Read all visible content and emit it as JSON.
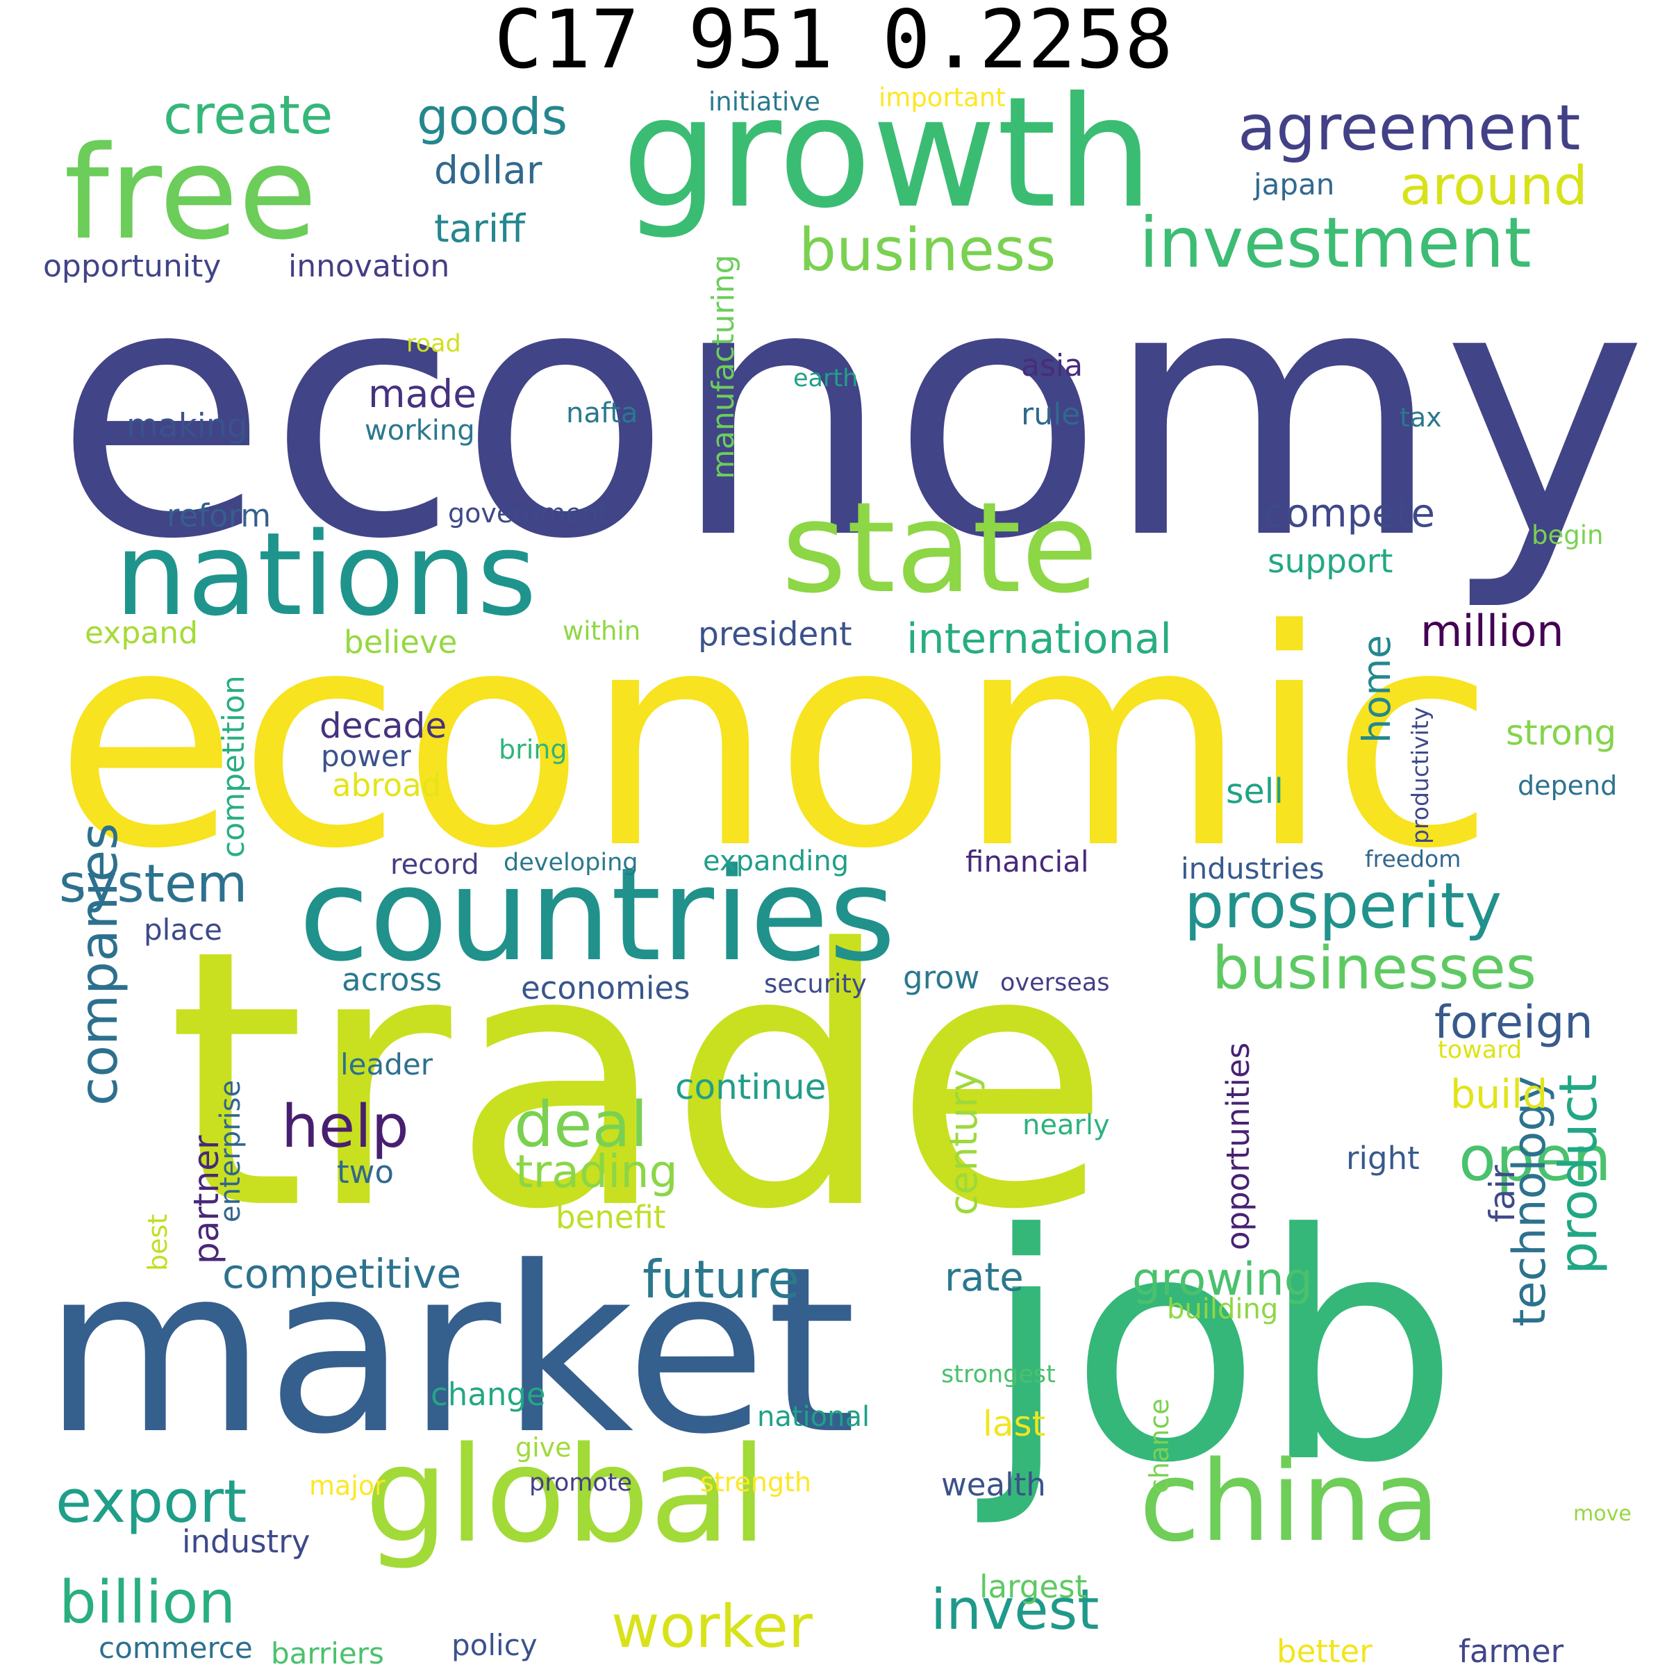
{
  "title": "C17 951 0.2258",
  "words": [
    {
      "text": "economy",
      "color": "#414487"
    },
    {
      "text": "economic",
      "color": "#f7e31f"
    },
    {
      "text": "trade",
      "color": "#c8e01f"
    },
    {
      "text": "market",
      "color": "#355f8d"
    },
    {
      "text": "job",
      "color": "#35b779"
    },
    {
      "text": "growth",
      "color": "#3bbc73"
    },
    {
      "text": "free",
      "color": "#6ccd5a"
    },
    {
      "text": "countries",
      "color": "#21918c"
    },
    {
      "text": "nations",
      "color": "#1f948c"
    },
    {
      "text": "state",
      "color": "#8dd645"
    },
    {
      "text": "global",
      "color": "#a2da37"
    },
    {
      "text": "china",
      "color": "#6ece58"
    },
    {
      "text": "agreement",
      "color": "#424086"
    },
    {
      "text": "investment",
      "color": "#3dbc74"
    },
    {
      "text": "business",
      "color": "#7ad151"
    },
    {
      "text": "create",
      "color": "#35b779"
    },
    {
      "text": "goods",
      "color": "#24878e"
    },
    {
      "text": "around",
      "color": "#d8e219"
    },
    {
      "text": "dollar",
      "color": "#31688e"
    },
    {
      "text": "tariff",
      "color": "#24878e"
    },
    {
      "text": "japan",
      "color": "#31688e"
    },
    {
      "text": "initiative",
      "color": "#2a788e"
    },
    {
      "text": "important",
      "color": "#fde725"
    },
    {
      "text": "opportunity",
      "color": "#414487"
    },
    {
      "text": "innovation",
      "color": "#433e85"
    },
    {
      "text": "system",
      "color": "#2c728e"
    },
    {
      "text": "prosperity",
      "color": "#21918c"
    },
    {
      "text": "businesses",
      "color": "#5ec962"
    },
    {
      "text": "companies",
      "color": "#2d708e"
    },
    {
      "text": "help",
      "color": "#481f70"
    },
    {
      "text": "deal",
      "color": "#7ad151"
    },
    {
      "text": "open",
      "color": "#4ac16d"
    },
    {
      "text": "export",
      "color": "#1f9e89"
    },
    {
      "text": "billion",
      "color": "#29af7f"
    },
    {
      "text": "worker",
      "color": "#d8e219"
    },
    {
      "text": "invest",
      "color": "#1f998a"
    },
    {
      "text": "future",
      "color": "#2a788e"
    },
    {
      "text": "product",
      "color": "#22a785"
    },
    {
      "text": "growing",
      "color": "#4ac16d"
    },
    {
      "text": "technology",
      "color": "#2c728e"
    },
    {
      "text": "made",
      "color": "#46327e"
    },
    {
      "text": "making",
      "color": "#3b528b"
    },
    {
      "text": "road",
      "color": "#d0e11c"
    },
    {
      "text": "working",
      "color": "#2a788e"
    },
    {
      "text": "nafta",
      "color": "#2a788e"
    },
    {
      "text": "earth",
      "color": "#1fa188"
    },
    {
      "text": "asia",
      "color": "#472d7b"
    },
    {
      "text": "rule",
      "color": "#31688e"
    },
    {
      "text": "tax",
      "color": "#2a788e"
    },
    {
      "text": "manufacturing",
      "color": "#6ccd5a"
    },
    {
      "text": "reform",
      "color": "#355f8d"
    },
    {
      "text": "government",
      "color": "#3e4989"
    },
    {
      "text": "compete",
      "color": "#3e4989"
    },
    {
      "text": "support",
      "color": "#22a884"
    },
    {
      "text": "begin",
      "color": "#7ad151"
    },
    {
      "text": "expand",
      "color": "#a5db36"
    },
    {
      "text": "within",
      "color": "#8fd744"
    },
    {
      "text": "believe",
      "color": "#95d840"
    },
    {
      "text": "president",
      "color": "#3b528b"
    },
    {
      "text": "international",
      "color": "#27ad81"
    },
    {
      "text": "million",
      "color": "#440154"
    },
    {
      "text": "competition",
      "color": "#29af7f"
    },
    {
      "text": "decade",
      "color": "#46327e"
    },
    {
      "text": "power",
      "color": "#3b528b"
    },
    {
      "text": "abroad",
      "color": "#e5e419"
    },
    {
      "text": "bring",
      "color": "#2fb47c"
    },
    {
      "text": "home",
      "color": "#24878e"
    },
    {
      "text": "strong",
      "color": "#84d44b"
    },
    {
      "text": "sell",
      "color": "#20a386"
    },
    {
      "text": "productivity",
      "color": "#3e4989"
    },
    {
      "text": "depend",
      "color": "#2c728e"
    },
    {
      "text": "record",
      "color": "#433e85"
    },
    {
      "text": "developing",
      "color": "#2a788e"
    },
    {
      "text": "expanding",
      "color": "#1f9e89"
    },
    {
      "text": "financial",
      "color": "#482878"
    },
    {
      "text": "industries",
      "color": "#38598c"
    },
    {
      "text": "freedom",
      "color": "#31688e"
    },
    {
      "text": "place",
      "color": "#3e4989"
    },
    {
      "text": "across",
      "color": "#2a788e"
    },
    {
      "text": "economies",
      "color": "#39558c"
    },
    {
      "text": "security",
      "color": "#3e4a89"
    },
    {
      "text": "grow",
      "color": "#2a788e"
    },
    {
      "text": "overseas",
      "color": "#433e85"
    },
    {
      "text": "foreign",
      "color": "#38598c"
    },
    {
      "text": "toward",
      "color": "#dde318"
    },
    {
      "text": "leader",
      "color": "#2d708e"
    },
    {
      "text": "enterprise",
      "color": "#32658e"
    },
    {
      "text": "continue",
      "color": "#1f9e89"
    },
    {
      "text": "century",
      "color": "#9dd93b"
    },
    {
      "text": "opportunities",
      "color": "#482173"
    },
    {
      "text": "build",
      "color": "#e2e418"
    },
    {
      "text": "partner",
      "color": "#482878"
    },
    {
      "text": "nearly",
      "color": "#2db27d"
    },
    {
      "text": "two",
      "color": "#31688e"
    },
    {
      "text": "trading",
      "color": "#8bd646"
    },
    {
      "text": "benefit",
      "color": "#bddf26"
    },
    {
      "text": "right",
      "color": "#38598c"
    },
    {
      "text": "fair",
      "color": "#3e4a89"
    },
    {
      "text": "best",
      "color": "#c2df23"
    },
    {
      "text": "competitive",
      "color": "#2c728e"
    },
    {
      "text": "rate",
      "color": "#2a788e"
    },
    {
      "text": "building",
      "color": "#8fd744"
    },
    {
      "text": "strongest",
      "color": "#4ac16d"
    },
    {
      "text": "change",
      "color": "#22a884"
    },
    {
      "text": "national",
      "color": "#1fa088"
    },
    {
      "text": "last",
      "color": "#f1e51d"
    },
    {
      "text": "chance",
      "color": "#7ad151"
    },
    {
      "text": "give",
      "color": "#a0da39"
    },
    {
      "text": "major",
      "color": "#fde725"
    },
    {
      "text": "promote",
      "color": "#433e85"
    },
    {
      "text": "strength",
      "color": "#fde725"
    },
    {
      "text": "wealth",
      "color": "#3b528b"
    },
    {
      "text": "move",
      "color": "#95d840"
    },
    {
      "text": "industry",
      "color": "#3e4989"
    },
    {
      "text": "largest",
      "color": "#5ec962"
    },
    {
      "text": "commerce",
      "color": "#2d708e"
    },
    {
      "text": "barriers",
      "color": "#4ac16d"
    },
    {
      "text": "policy",
      "color": "#3b528b"
    },
    {
      "text": "better",
      "color": "#f1e51d"
    },
    {
      "text": "farmer",
      "color": "#404688"
    }
  ]
}
